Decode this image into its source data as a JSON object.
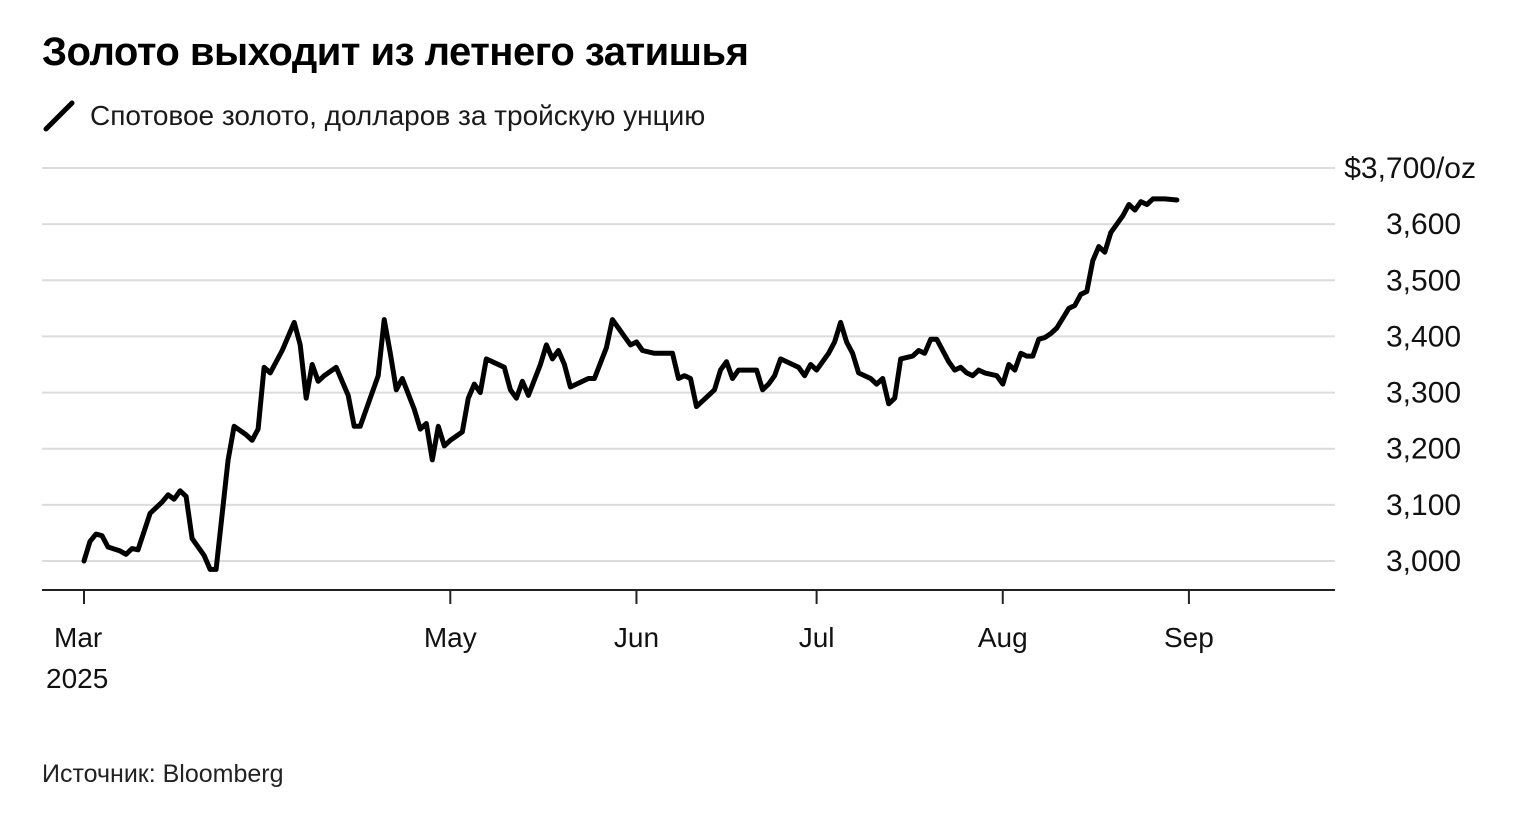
{
  "chart_data": {
    "type": "line",
    "title": "Золото выходит из летнего затишья",
    "legend": "Спотовое золото, долларов за тройскую унцию",
    "legend_placement": "top-left",
    "source": "Источник: Bloomberg",
    "line_color": "#000000",
    "grid": true,
    "ylim": [
      2950,
      3700
    ],
    "xlim": [
      "2025-03-01",
      "2025-09-19"
    ],
    "y_ticks": [
      {
        "value": 3000,
        "label": "3,000"
      },
      {
        "value": 3100,
        "label": "3,100"
      },
      {
        "value": 3200,
        "label": "3,200"
      },
      {
        "value": 3300,
        "label": "3,300"
      },
      {
        "value": 3400,
        "label": "3,400"
      },
      {
        "value": 3500,
        "label": "3,500"
      },
      {
        "value": 3600,
        "label": "3,600"
      },
      {
        "value": 3700,
        "label": "$3,700/oz"
      }
    ],
    "x_ticks": [
      {
        "date": "2025-03-01",
        "label": "Mar",
        "sublabel": "2025"
      },
      {
        "date": "2025-05-01",
        "label": "May"
      },
      {
        "date": "2025-06-01",
        "label": "Jun"
      },
      {
        "date": "2025-07-01",
        "label": "Jul"
      },
      {
        "date": "2025-08-01",
        "label": "Aug"
      },
      {
        "date": "2025-09-01",
        "label": "Sep"
      }
    ],
    "series": [
      {
        "name": "Спотовое золото, долларов за тройскую унцию",
        "points": [
          [
            "2025-03-01",
            3000
          ],
          [
            "2025-03-02",
            3035
          ],
          [
            "2025-03-03",
            3048
          ],
          [
            "2025-03-04",
            3045
          ],
          [
            "2025-03-05",
            3025
          ],
          [
            "2025-03-07",
            3018
          ],
          [
            "2025-03-08",
            3012
          ],
          [
            "2025-03-09",
            3022
          ],
          [
            "2025-03-10",
            3020
          ],
          [
            "2025-03-12",
            3085
          ],
          [
            "2025-03-14",
            3105
          ],
          [
            "2025-03-15",
            3118
          ],
          [
            "2025-03-16",
            3110
          ],
          [
            "2025-03-17",
            3125
          ],
          [
            "2025-03-18",
            3115
          ],
          [
            "2025-03-19",
            3040
          ],
          [
            "2025-03-21",
            3010
          ],
          [
            "2025-03-22",
            2985
          ],
          [
            "2025-03-23",
            2985
          ],
          [
            "2025-03-25",
            3180
          ],
          [
            "2025-03-26",
            3240
          ],
          [
            "2025-03-28",
            3225
          ],
          [
            "2025-03-29",
            3215
          ],
          [
            "2025-03-30",
            3235
          ],
          [
            "2025-03-31",
            3345
          ],
          [
            "2025-04-01",
            3335
          ],
          [
            "2025-04-03",
            3375
          ],
          [
            "2025-04-05",
            3425
          ],
          [
            "2025-04-06",
            3385
          ],
          [
            "2025-04-07",
            3290
          ],
          [
            "2025-04-08",
            3350
          ],
          [
            "2025-04-09",
            3320
          ],
          [
            "2025-04-10",
            3330
          ],
          [
            "2025-04-12",
            3345
          ],
          [
            "2025-04-14",
            3295
          ],
          [
            "2025-04-15",
            3240
          ],
          [
            "2025-04-16",
            3240
          ],
          [
            "2025-04-19",
            3330
          ],
          [
            "2025-04-20",
            3430
          ],
          [
            "2025-04-21",
            3370
          ],
          [
            "2025-04-22",
            3305
          ],
          [
            "2025-04-23",
            3325
          ],
          [
            "2025-04-25",
            3270
          ],
          [
            "2025-04-26",
            3235
          ],
          [
            "2025-04-27",
            3245
          ],
          [
            "2025-04-28",
            3180
          ],
          [
            "2025-04-29",
            3240
          ],
          [
            "2025-04-30",
            3205
          ],
          [
            "2025-05-01",
            3215
          ],
          [
            "2025-05-03",
            3230
          ],
          [
            "2025-05-04",
            3290
          ],
          [
            "2025-05-05",
            3315
          ],
          [
            "2025-05-06",
            3300
          ],
          [
            "2025-05-07",
            3360
          ],
          [
            "2025-05-08",
            3355
          ],
          [
            "2025-05-10",
            3345
          ],
          [
            "2025-05-11",
            3305
          ],
          [
            "2025-05-12",
            3290
          ],
          [
            "2025-05-13",
            3320
          ],
          [
            "2025-05-14",
            3295
          ],
          [
            "2025-05-16",
            3350
          ],
          [
            "2025-05-17",
            3385
          ],
          [
            "2025-05-18",
            3360
          ],
          [
            "2025-05-19",
            3375
          ],
          [
            "2025-05-20",
            3350
          ],
          [
            "2025-05-21",
            3310
          ],
          [
            "2025-05-24",
            3325
          ],
          [
            "2025-05-25",
            3325
          ],
          [
            "2025-05-27",
            3380
          ],
          [
            "2025-05-28",
            3430
          ],
          [
            "2025-05-29",
            3415
          ],
          [
            "2025-05-30",
            3400
          ],
          [
            "2025-05-31",
            3385
          ],
          [
            "2025-06-01",
            3390
          ],
          [
            "2025-06-02",
            3375
          ],
          [
            "2025-06-04",
            3370
          ],
          [
            "2025-06-07",
            3370
          ],
          [
            "2025-06-08",
            3325
          ],
          [
            "2025-06-09",
            3330
          ],
          [
            "2025-06-10",
            3325
          ],
          [
            "2025-06-11",
            3275
          ],
          [
            "2025-06-13",
            3295
          ],
          [
            "2025-06-14",
            3305
          ],
          [
            "2025-06-15",
            3340
          ],
          [
            "2025-06-16",
            3355
          ],
          [
            "2025-06-17",
            3325
          ],
          [
            "2025-06-18",
            3340
          ],
          [
            "2025-06-21",
            3340
          ],
          [
            "2025-06-22",
            3305
          ],
          [
            "2025-06-23",
            3315
          ],
          [
            "2025-06-24",
            3330
          ],
          [
            "2025-06-25",
            3360
          ],
          [
            "2025-06-27",
            3350
          ],
          [
            "2025-06-28",
            3345
          ],
          [
            "2025-06-29",
            3330
          ],
          [
            "2025-06-30",
            3350
          ],
          [
            "2025-07-01",
            3340
          ],
          [
            "2025-07-03",
            3370
          ],
          [
            "2025-07-04",
            3390
          ],
          [
            "2025-07-05",
            3425
          ],
          [
            "2025-07-06",
            3390
          ],
          [
            "2025-07-07",
            3370
          ],
          [
            "2025-07-08",
            3335
          ],
          [
            "2025-07-10",
            3325
          ],
          [
            "2025-07-11",
            3315
          ],
          [
            "2025-07-12",
            3325
          ],
          [
            "2025-07-13",
            3280
          ],
          [
            "2025-07-14",
            3290
          ],
          [
            "2025-07-15",
            3360
          ],
          [
            "2025-07-17",
            3365
          ],
          [
            "2025-07-18",
            3375
          ],
          [
            "2025-07-19",
            3370
          ],
          [
            "2025-07-20",
            3395
          ],
          [
            "2025-07-21",
            3395
          ],
          [
            "2025-07-23",
            3355
          ],
          [
            "2025-07-24",
            3340
          ],
          [
            "2025-07-25",
            3345
          ],
          [
            "2025-07-26",
            3335
          ],
          [
            "2025-07-27",
            3330
          ],
          [
            "2025-07-28",
            3340
          ],
          [
            "2025-07-29",
            3335
          ],
          [
            "2025-07-31",
            3330
          ],
          [
            "2025-08-01",
            3315
          ],
          [
            "2025-08-02",
            3350
          ],
          [
            "2025-08-03",
            3340
          ],
          [
            "2025-08-04",
            3370
          ],
          [
            "2025-08-05",
            3365
          ],
          [
            "2025-08-06",
            3365
          ],
          [
            "2025-08-07",
            3395
          ],
          [
            "2025-08-08",
            3398
          ],
          [
            "2025-08-09",
            3405
          ],
          [
            "2025-08-10",
            3415
          ],
          [
            "2025-08-12",
            3450
          ],
          [
            "2025-08-13",
            3455
          ],
          [
            "2025-08-14",
            3475
          ],
          [
            "2025-08-15",
            3480
          ],
          [
            "2025-08-16",
            3535
          ],
          [
            "2025-08-17",
            3560
          ],
          [
            "2025-08-18",
            3550
          ],
          [
            "2025-08-19",
            3585
          ],
          [
            "2025-08-20",
            3600
          ],
          [
            "2025-08-21",
            3615
          ],
          [
            "2025-08-22",
            3635
          ],
          [
            "2025-08-23",
            3625
          ],
          [
            "2025-08-24",
            3640
          ],
          [
            "2025-08-25",
            3635
          ],
          [
            "2025-08-26",
            3645
          ],
          [
            "2025-08-28",
            3645
          ],
          [
            "2025-08-30",
            3643
          ]
        ]
      }
    ]
  }
}
